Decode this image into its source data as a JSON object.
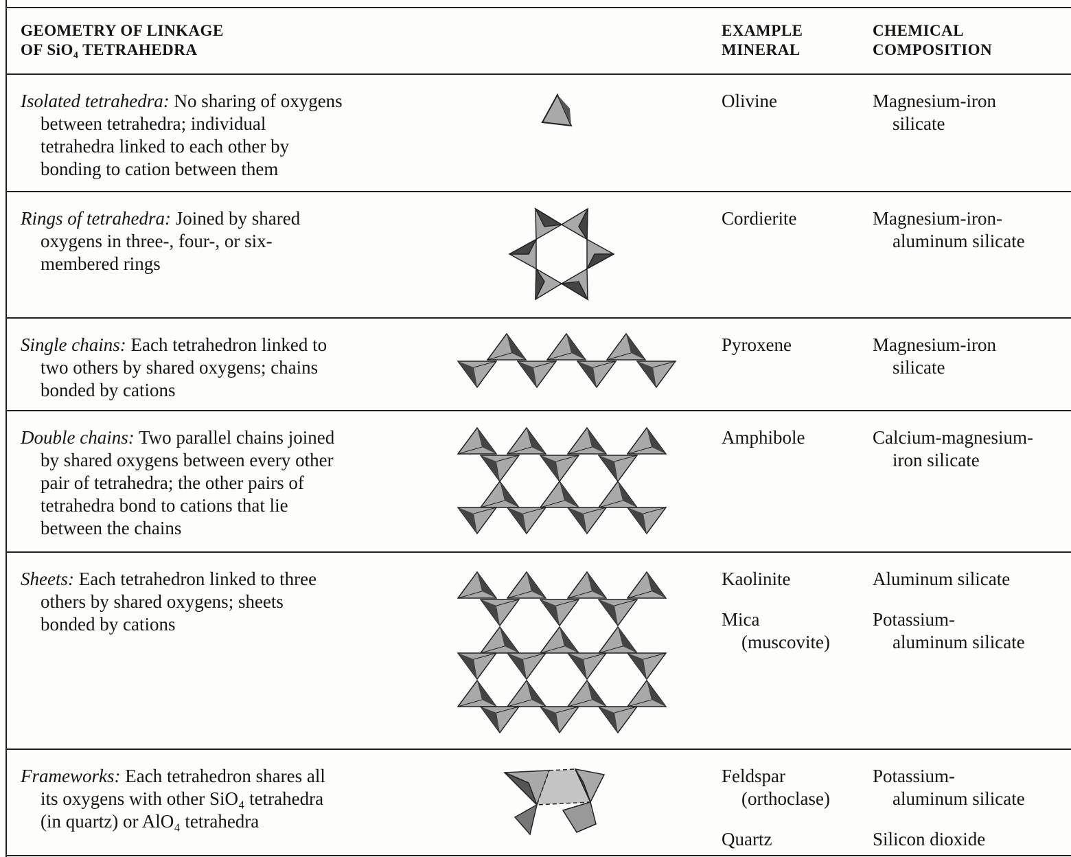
{
  "header": {
    "geometry": [
      "GEOMETRY OF LINKAGE",
      "OF SiO₄ TETRAHEDRA"
    ],
    "mineral": [
      "EXAMPLE",
      "MINERAL"
    ],
    "composition": [
      "CHEMICAL",
      "COMPOSITION"
    ]
  },
  "rows": [
    {
      "term": "Isolated tetrahedra:",
      "description": [
        "No sharing of oxygens",
        "between tetrahedra; individual",
        "tetrahedra linked to each other by",
        "bonding to cation between them"
      ],
      "minerals": [
        {
          "name": [
            "Olivine"
          ],
          "composition": [
            "Magnesium-iron",
            "silicate"
          ]
        }
      ]
    },
    {
      "term": "Rings of tetrahedra:",
      "description": [
        "Joined by shared",
        "oxygens in three-, four-, or six-",
        "membered rings"
      ],
      "minerals": [
        {
          "name": [
            "Cordierite"
          ],
          "composition": [
            "Magnesium-iron-",
            "aluminum silicate"
          ]
        }
      ]
    },
    {
      "term": "Single chains:",
      "description": [
        "Each tetrahedron linked to",
        "two others by shared oxygens; chains",
        "bonded by cations"
      ],
      "minerals": [
        {
          "name": [
            "Pyroxene"
          ],
          "composition": [
            "Magnesium-iron",
            "silicate"
          ]
        }
      ]
    },
    {
      "term": "Double chains:",
      "description": [
        "Two parallel chains joined",
        "by shared oxygens between every other",
        "pair of tetrahedra; the other pairs of",
        "tetrahedra bond to cations that lie",
        "between the chains"
      ],
      "minerals": [
        {
          "name": [
            "Amphibole"
          ],
          "composition": [
            "Calcium-magnesium-",
            "iron silicate"
          ]
        }
      ]
    },
    {
      "term": "Sheets:",
      "description": [
        "Each tetrahedron linked to three",
        "others by shared oxygens; sheets",
        "bonded by cations"
      ],
      "minerals": [
        {
          "name": [
            "Kaolinite"
          ],
          "composition": [
            "Aluminum silicate"
          ]
        },
        {
          "name": [
            "Mica",
            "(muscovite)"
          ],
          "composition": [
            "Potassium-",
            "aluminum silicate"
          ]
        }
      ]
    },
    {
      "term": "Frameworks:",
      "description": [
        "Each tetrahedron shares all",
        "its oxygens with other SiO₄ tetrahedra",
        "(in quartz) or AlO₄ tetrahedra"
      ],
      "minerals": [
        {
          "name": [
            "Feldspar",
            "(orthoclase)"
          ],
          "composition": [
            "Potassium-",
            "aluminum silicate"
          ]
        },
        {
          "name": [
            "Quartz"
          ],
          "composition": [
            "Silicon dioxide"
          ]
        }
      ]
    }
  ]
}
